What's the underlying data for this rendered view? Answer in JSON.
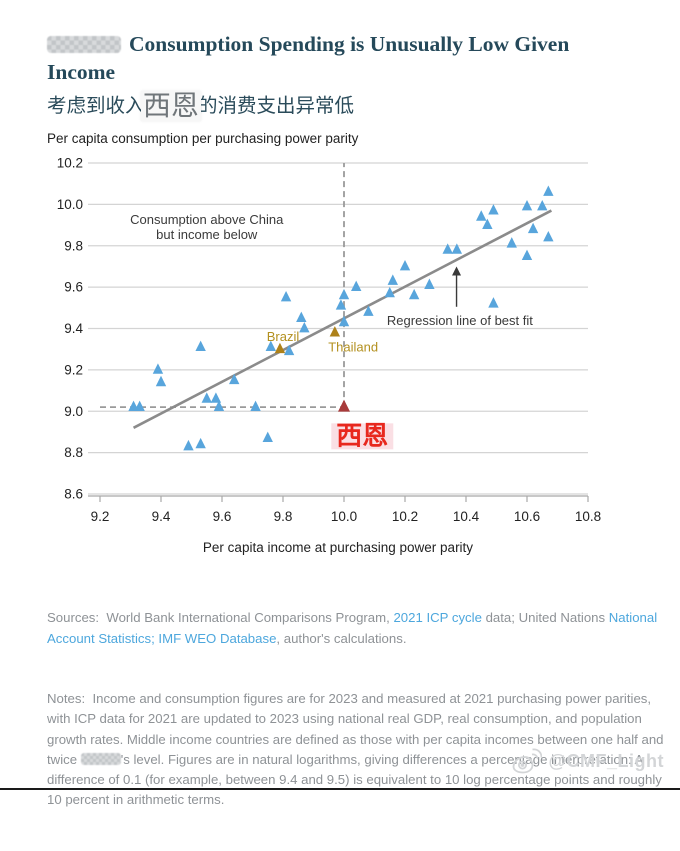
{
  "header": {
    "title_after_censor": "Consumption Spending is Unusually Low Given Income",
    "subtitle_prefix": "考虑到收入,",
    "subtitle_censor_overlay": "西恩",
    "subtitle_suffix": "的消费支出异常低"
  },
  "chart_data": {
    "type": "scatter",
    "title": "Per capita consumption per purchasing power parity",
    "xlabel": "Per capita income at purchasing power parity",
    "xlim": [
      9.2,
      10.8
    ],
    "ylim": [
      8.6,
      10.2
    ],
    "x_ticks": [
      9.2,
      9.4,
      9.6,
      9.8,
      10.0,
      10.2,
      10.4,
      10.6,
      10.8
    ],
    "y_ticks": [
      8.6,
      8.8,
      9.0,
      9.2,
      9.4,
      9.6,
      9.8,
      10.0,
      10.2
    ],
    "grid": "horizontal",
    "colors": {
      "point_blue": "#58a5dc",
      "point_gold": "#ad8119",
      "point_red": "#a83b3b",
      "label_gold": "#b3901f",
      "label_red": "#e8281e",
      "regression": "#8b8b8b",
      "gridline": "#d4d4d4",
      "axis": "#a8a8a8",
      "dashed": "#9a9a9a",
      "annotation": "#3a3a3a",
      "tick_text": "#222222",
      "red_highlight": "#f5b9c4"
    },
    "series": [
      {
        "key": "countries_blue",
        "marker": "triangle",
        "color_ref": "point_blue",
        "points": [
          [
            9.31,
            9.02
          ],
          [
            9.33,
            9.02
          ],
          [
            9.39,
            9.2
          ],
          [
            9.4,
            9.14
          ],
          [
            9.49,
            8.83
          ],
          [
            9.53,
            8.84
          ],
          [
            9.53,
            9.31
          ],
          [
            9.55,
            9.06
          ],
          [
            9.58,
            9.06
          ],
          [
            9.59,
            9.02
          ],
          [
            9.64,
            9.15
          ],
          [
            9.71,
            9.02
          ],
          [
            9.75,
            8.87
          ],
          [
            9.76,
            9.31
          ],
          [
            9.81,
            9.55
          ],
          [
            9.82,
            9.29
          ],
          [
            9.86,
            9.45
          ],
          [
            9.87,
            9.4
          ],
          [
            10.0,
            9.56
          ],
          [
            9.99,
            9.51
          ],
          [
            10.0,
            9.43
          ],
          [
            10.04,
            9.6
          ],
          [
            10.08,
            9.48
          ],
          [
            10.15,
            9.57
          ],
          [
            10.16,
            9.63
          ],
          [
            10.2,
            9.7
          ],
          [
            10.23,
            9.56
          ],
          [
            10.28,
            9.61
          ],
          [
            10.34,
            9.78
          ],
          [
            10.37,
            9.78
          ],
          [
            10.45,
            9.94
          ],
          [
            10.47,
            9.9
          ],
          [
            10.49,
            9.97
          ],
          [
            10.49,
            9.52
          ],
          [
            10.55,
            9.81
          ],
          [
            10.6,
            9.99
          ],
          [
            10.6,
            9.75
          ],
          [
            10.62,
            9.88
          ],
          [
            10.65,
            9.99
          ],
          [
            10.67,
            10.06
          ],
          [
            10.67,
            9.84
          ]
        ]
      },
      {
        "key": "brazil",
        "marker": "triangle",
        "color_ref": "point_gold",
        "points": [
          [
            9.79,
            9.3
          ]
        ],
        "label": {
          "text": "Brazil",
          "x": 9.8,
          "y": 9.34,
          "anchor": "middle",
          "size": 13,
          "color_ref": "label_gold"
        }
      },
      {
        "key": "thailand",
        "marker": "triangle",
        "color_ref": "point_gold",
        "points": [
          [
            9.97,
            9.38
          ]
        ],
        "label": {
          "text": "Thailand",
          "x": 10.03,
          "y": 9.29,
          "anchor": "middle",
          "size": 13,
          "color_ref": "label_gold"
        }
      },
      {
        "key": "highlight_red",
        "marker": "triangle",
        "size": 6,
        "color_ref": "point_red",
        "points": [
          [
            10.0,
            9.02
          ]
        ],
        "label": {
          "text": "西恩",
          "x": 10.06,
          "y": 8.84,
          "anchor": "middle",
          "size": 26,
          "bold": true,
          "color_ref": "label_red",
          "highlight_ref": "red_highlight"
        }
      }
    ],
    "regression_line": {
      "x1": 9.31,
      "y1": 8.92,
      "x2": 10.68,
      "y2": 9.97
    },
    "dashed_lines": [
      {
        "x1": 9.2,
        "y1": 9.02,
        "x2": 10.0,
        "y2": 9.02
      },
      {
        "x1": 10.0,
        "y1": 9.02,
        "x2": 10.0,
        "y2": 10.2
      }
    ],
    "annotations": [
      {
        "lines": [
          "Consumption above China",
          "but income below"
        ],
        "x": 9.55,
        "y": 9.905
      },
      {
        "lines": [
          "Regression line of best fit"
        ],
        "x": 10.38,
        "y": 9.417,
        "arrow": {
          "x": 10.369,
          "y_from": 9.505,
          "y_to": 9.695
        }
      }
    ]
  },
  "footer": {
    "sources_segments": [
      {
        "type": "text",
        "text": "Sources:  World Bank International Comparisons Program, "
      },
      {
        "type": "link",
        "text": "2021 ICP cycle"
      },
      {
        "type": "text",
        "text": " data; United Nations "
      },
      {
        "type": "link",
        "text": "National Account Statistics;"
      },
      {
        "type": "text",
        "text": " "
      },
      {
        "type": "link",
        "text": "IMF WEO Database"
      },
      {
        "type": "text",
        "text": ", author's calculations."
      }
    ],
    "notes_segments": [
      {
        "type": "text",
        "text": "Notes:  Income and consumption figures are for 2023 and measured at 2021 purchasing power parities, with ICP data for 2021 are updated to 2023 using national real GDP, real consumption, and population growth rates. Middle income countries are defined as those with per capita incomes between one half and twice "
      },
      {
        "type": "censor"
      },
      {
        "type": "text",
        "text": "'s level. Figures are in natural logarithms, giving differences a percentage interpretation: A difference of 0.1 (for example, between 9.4 and 9.5) is equivalent to 10 log percentage points and roughly 10 percent in arithmetic terms."
      }
    ]
  },
  "watermark": {
    "handle": "@CMF_Light"
  }
}
